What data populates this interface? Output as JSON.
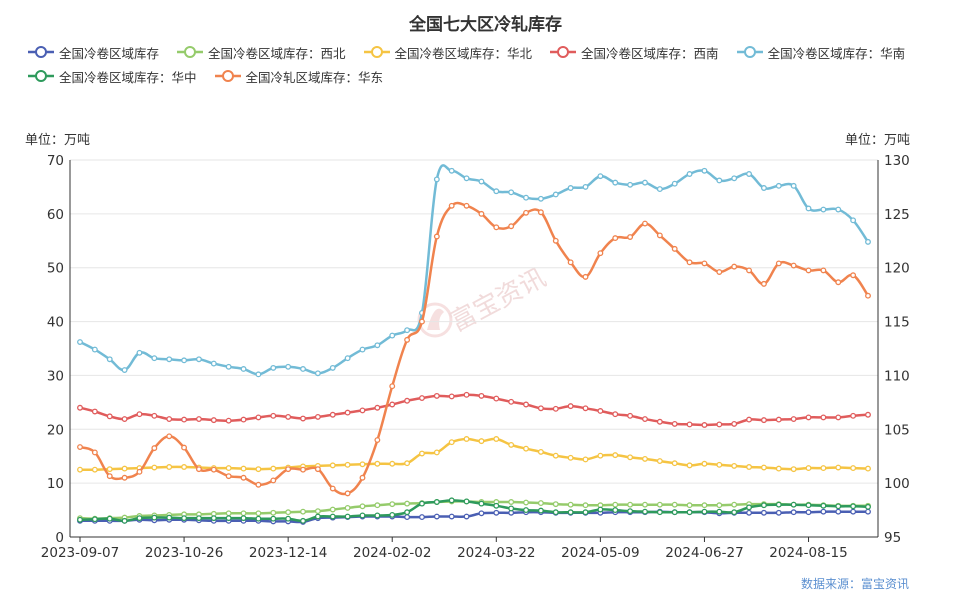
{
  "chart_data": {
    "type": "line",
    "title": "全国七大区冷轧库存",
    "y_unit_left": "单位：万吨",
    "y_unit_right": "单位：万吨",
    "ylim_left": [
      0,
      70
    ],
    "ylim_right": [
      95,
      130
    ],
    "y_ticks_left": [
      "0",
      "10",
      "20",
      "30",
      "40",
      "50",
      "60",
      "70"
    ],
    "y_ticks_right": [
      "95",
      "100",
      "105",
      "110",
      "115",
      "120",
      "125",
      "130"
    ],
    "x_tick_labels": [
      "2023-09-07",
      "2023-10-26",
      "2023-12-14",
      "2024-02-02",
      "2024-03-22",
      "2024-05-09",
      "2024-06-27",
      "2024-08-15"
    ],
    "x_tick_index": [
      0,
      7,
      14,
      21,
      28,
      35,
      42,
      49
    ],
    "n_points": 54,
    "grid": true,
    "legend_position": "top",
    "watermark": "富宝资讯",
    "source": "数据来源：富宝资讯",
    "series": [
      {
        "name": "全国冷卷区域库存",
        "color": "#4a5fb3",
        "axis": "left",
        "values": [
          3.0,
          3.0,
          3.0,
          3.0,
          3.2,
          3.1,
          3.2,
          3.2,
          3.1,
          3.0,
          3.0,
          3.0,
          3.0,
          2.9,
          2.9,
          2.8,
          3.5,
          3.6,
          3.7,
          3.8,
          3.8,
          3.8,
          3.7,
          3.7,
          3.8,
          3.8,
          3.8,
          4.4,
          4.5,
          4.5,
          4.6,
          4.6,
          4.5,
          4.5,
          4.5,
          4.5,
          4.6,
          4.6,
          4.6,
          4.7,
          4.6,
          4.6,
          4.6,
          4.4,
          4.5,
          4.5,
          4.5,
          4.5,
          4.6,
          4.6,
          4.7,
          4.7,
          4.7,
          4.7
        ]
      },
      {
        "name": "全国冷卷区域库存：西北",
        "color": "#95cb6b",
        "axis": "left",
        "values": [
          3.5,
          3.4,
          3.5,
          3.6,
          3.9,
          4.0,
          4.1,
          4.2,
          4.2,
          4.3,
          4.4,
          4.4,
          4.4,
          4.5,
          4.6,
          4.7,
          4.8,
          5.1,
          5.4,
          5.7,
          5.9,
          6.1,
          6.2,
          6.3,
          6.5,
          6.6,
          6.6,
          6.5,
          6.5,
          6.5,
          6.4,
          6.3,
          6.1,
          6.0,
          5.9,
          5.9,
          6.0,
          6.0,
          6.0,
          6.0,
          6.0,
          5.9,
          5.9,
          5.9,
          6.0,
          6.1,
          6.1,
          6.1,
          6.0,
          6.0,
          5.9,
          5.8,
          5.8,
          5.8
        ]
      },
      {
        "name": "全国冷卷区域库存：华北",
        "color": "#f5c443",
        "axis": "left",
        "values": [
          12.5,
          12.5,
          12.6,
          12.7,
          12.8,
          12.9,
          13.0,
          13.0,
          12.9,
          12.8,
          12.8,
          12.7,
          12.6,
          12.7,
          12.9,
          13.1,
          13.2,
          13.3,
          13.4,
          13.5,
          13.6,
          13.6,
          13.7,
          15.5,
          15.7,
          17.6,
          18.2,
          17.8,
          18.2,
          17.1,
          16.4,
          15.8,
          15.1,
          14.7,
          14.4,
          15.1,
          15.2,
          14.8,
          14.5,
          14.1,
          13.7,
          13.3,
          13.6,
          13.4,
          13.2,
          13.0,
          12.9,
          12.7,
          12.6,
          12.8,
          12.8,
          12.9,
          12.8,
          12.7
        ]
      },
      {
        "name": "全国冷卷区域库存：西南",
        "color": "#e05c5c",
        "axis": "left",
        "values": [
          24.0,
          23.3,
          22.4,
          21.9,
          22.8,
          22.5,
          21.9,
          21.8,
          21.9,
          21.7,
          21.6,
          21.8,
          22.2,
          22.5,
          22.3,
          22.0,
          22.3,
          22.7,
          23.1,
          23.5,
          24.0,
          24.6,
          25.3,
          25.8,
          26.2,
          26.1,
          26.4,
          26.2,
          25.7,
          25.1,
          24.6,
          23.9,
          23.8,
          24.3,
          23.9,
          23.4,
          22.8,
          22.5,
          21.9,
          21.4,
          21.0,
          20.9,
          20.8,
          20.9,
          21.0,
          21.8,
          21.7,
          21.8,
          21.9,
          22.2,
          22.2,
          22.2,
          22.5,
          22.7
        ]
      },
      {
        "name": "全国冷卷区域库存：华南",
        "color": "#72bbd6",
        "axis": "right",
        "values": [
          113.1,
          112.4,
          111.5,
          110.5,
          112.1,
          111.6,
          111.5,
          111.4,
          111.5,
          111.1,
          110.8,
          110.6,
          110.1,
          110.7,
          110.8,
          110.6,
          110.2,
          110.7,
          111.6,
          112.4,
          112.8,
          113.7,
          114.2,
          115.8,
          128.2,
          129.0,
          128.3,
          128.0,
          127.1,
          127.0,
          126.5,
          126.4,
          126.8,
          127.4,
          127.5,
          128.5,
          127.9,
          127.7,
          127.9,
          127.3,
          127.8,
          128.7,
          129.0,
          128.1,
          128.3,
          128.7,
          127.4,
          127.6,
          127.6,
          125.5,
          125.4,
          125.4,
          124.4,
          122.4
        ]
      },
      {
        "name": "全国冷卷区域库存：华中",
        "color": "#2e9a5c",
        "axis": "left",
        "values": [
          3.2,
          3.3,
          3.4,
          3.0,
          3.5,
          3.6,
          3.6,
          3.5,
          3.5,
          3.5,
          3.5,
          3.5,
          3.4,
          3.4,
          3.4,
          3.0,
          3.8,
          3.8,
          3.8,
          4.0,
          4.0,
          4.1,
          4.6,
          6.2,
          6.5,
          6.8,
          6.6,
          6.2,
          5.8,
          5.3,
          5.0,
          4.9,
          4.6,
          4.6,
          4.6,
          5.1,
          5.0,
          4.8,
          4.7,
          4.6,
          4.6,
          4.6,
          4.7,
          4.7,
          4.6,
          5.5,
          5.9,
          6.0,
          6.0,
          5.9,
          5.8,
          5.7,
          5.7,
          5.6
        ]
      },
      {
        "name": "全国冷轧区域库存：华东",
        "color": "#f0834e",
        "axis": "left",
        "values": [
          16.7,
          15.7,
          11.3,
          11.0,
          12.1,
          16.5,
          18.7,
          16.6,
          12.6,
          12.5,
          11.3,
          11.0,
          9.7,
          10.5,
          12.6,
          12.5,
          12.6,
          9.0,
          8.1,
          11.0,
          18.0,
          28.0,
          36.6,
          40.0,
          55.8,
          61.5,
          61.5,
          60.0,
          57.5,
          57.7,
          60.2,
          60.3,
          55.0,
          51.0,
          48.3,
          52.7,
          55.5,
          55.7,
          58.2,
          56.0,
          53.5,
          51.0,
          50.8,
          49.2,
          50.2,
          49.5,
          47.0,
          50.8,
          50.4,
          49.5,
          49.5,
          47.3,
          48.6,
          44.8
        ]
      }
    ]
  }
}
